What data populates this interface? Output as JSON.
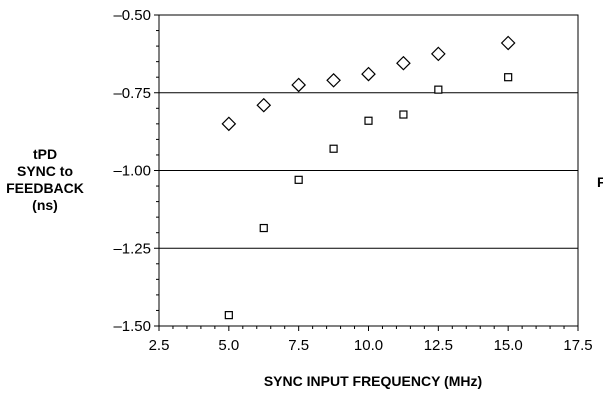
{
  "chart_data": {
    "type": "scatter",
    "xlabel": "SYNC INPUT FREQUENCY (MHz)",
    "ylabel_lines": [
      "tPD",
      "SYNC to",
      "FEEDBACK",
      "(ns)"
    ],
    "right_edge_label": "F",
    "xlim": [
      2.5,
      17.5
    ],
    "ylim": [
      -1.5,
      -0.5
    ],
    "x_ticks": [
      2.5,
      5.0,
      7.5,
      10.0,
      12.5,
      15.0,
      17.5
    ],
    "x_tick_labels": [
      "2.5",
      "5.0",
      "7.5",
      "10.0",
      "12.5",
      "15.0",
      "17.5"
    ],
    "y_ticks": [
      -0.5,
      -0.75,
      -1.0,
      -1.25,
      -1.5
    ],
    "y_tick_labels": [
      "–0.50",
      "–0.75",
      "–1.00",
      "–1.25",
      "–1.50"
    ],
    "gridlines_y": [
      -0.75,
      -1.0,
      -1.25
    ],
    "series": [
      {
        "marker": "diamond",
        "x": [
          5.0,
          6.25,
          7.5,
          8.75,
          10.0,
          11.25,
          12.5,
          15.0
        ],
        "y": [
          -0.85,
          -0.79,
          -0.725,
          -0.71,
          -0.69,
          -0.655,
          -0.625,
          -0.59
        ]
      },
      {
        "marker": "square",
        "x": [
          5.0,
          6.25,
          7.5,
          8.75,
          10.0,
          11.25,
          12.5,
          15.0
        ],
        "y": [
          -1.465,
          -1.185,
          -1.03,
          -0.93,
          -0.84,
          -0.82,
          -0.74,
          -0.7
        ]
      }
    ]
  }
}
